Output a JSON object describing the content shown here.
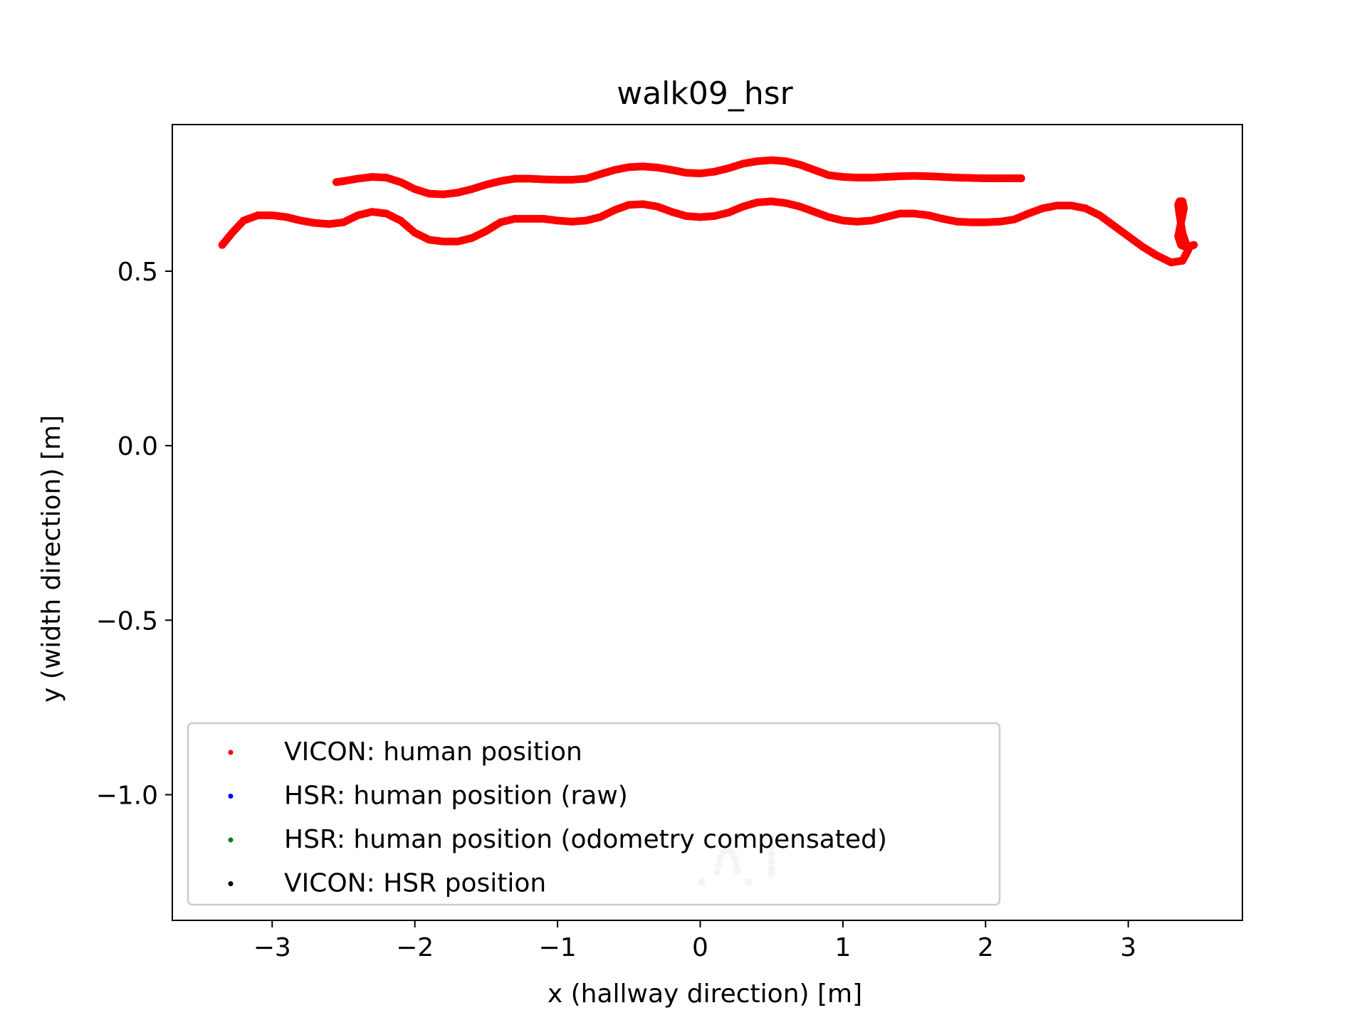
{
  "chart_data": {
    "type": "scatter",
    "title": "walk09_hsr",
    "xlabel": "x (hallway direction) [m]",
    "ylabel": "y (width direction) [m]",
    "xlim": [
      -3.7,
      3.8
    ],
    "ylim": [
      -1.36,
      0.92
    ],
    "grid": false,
    "legend_position": "lower-left",
    "x_ticks": [
      -3,
      -2,
      -1,
      0,
      1,
      2,
      3
    ],
    "x_tick_labels": [
      "−3",
      "−2",
      "−1",
      "0",
      "1",
      "2",
      "3"
    ],
    "y_ticks": [
      0.5,
      0.0,
      -0.5,
      -1.0
    ],
    "y_tick_labels": [
      "0.5",
      "0.0",
      "−0.5",
      "−1.0"
    ],
    "series": [
      {
        "name": "VICON: human position",
        "color": "#ff0000",
        "x": [
          -3.35,
          -3.28,
          -3.2,
          -3.1,
          -3.0,
          -2.9,
          -2.8,
          -2.7,
          -2.6,
          -2.5,
          -2.4,
          -2.3,
          -2.2,
          -2.1,
          -2.0,
          -1.9,
          -1.8,
          -1.7,
          -1.6,
          -1.5,
          -1.4,
          -1.3,
          -1.2,
          -1.1,
          -1.0,
          -0.9,
          -0.8,
          -0.7,
          -0.6,
          -0.5,
          -0.4,
          -0.3,
          -0.2,
          -0.1,
          0.0,
          0.1,
          0.2,
          0.3,
          0.4,
          0.5,
          0.6,
          0.7,
          0.8,
          0.9,
          1.0,
          1.1,
          1.2,
          1.3,
          1.4,
          1.5,
          1.6,
          1.7,
          1.8,
          1.9,
          2.0,
          2.1,
          2.2,
          2.3,
          2.4,
          2.5,
          2.6,
          2.7,
          2.8,
          2.9,
          3.0,
          3.1,
          3.2,
          3.3,
          3.38,
          3.42,
          3.38,
          3.36,
          3.35,
          3.36,
          3.38,
          3.39,
          3.37,
          3.35,
          3.37,
          3.4,
          3.44,
          3.46
        ],
        "y": [
          0.575,
          0.61,
          0.645,
          0.66,
          0.66,
          0.655,
          0.645,
          0.638,
          0.635,
          0.64,
          0.66,
          0.67,
          0.665,
          0.645,
          0.61,
          0.59,
          0.585,
          0.585,
          0.595,
          0.615,
          0.64,
          0.65,
          0.65,
          0.65,
          0.645,
          0.642,
          0.645,
          0.655,
          0.675,
          0.69,
          0.692,
          0.685,
          0.67,
          0.658,
          0.655,
          0.658,
          0.668,
          0.685,
          0.697,
          0.7,
          0.695,
          0.685,
          0.67,
          0.655,
          0.645,
          0.642,
          0.645,
          0.655,
          0.665,
          0.665,
          0.66,
          0.65,
          0.642,
          0.64,
          0.64,
          0.642,
          0.648,
          0.665,
          0.68,
          0.688,
          0.688,
          0.68,
          0.66,
          0.63,
          0.6,
          0.57,
          0.545,
          0.525,
          0.53,
          0.56,
          0.61,
          0.66,
          0.69,
          0.7,
          0.7,
          0.68,
          0.64,
          0.6,
          0.575,
          0.57,
          0.572,
          0.575
        ]
      },
      {
        "name": "VICON: human position",
        "color": "#ff0000",
        "x": [
          -2.55,
          -2.5,
          -2.4,
          -2.3,
          -2.2,
          -2.1,
          -2.0,
          -1.9,
          -1.8,
          -1.7,
          -1.6,
          -1.5,
          -1.4,
          -1.3,
          -1.2,
          -1.1,
          -1.0,
          -0.9,
          -0.8,
          -0.7,
          -0.6,
          -0.5,
          -0.4,
          -0.3,
          -0.2,
          -0.1,
          0.0,
          0.1,
          0.2,
          0.3,
          0.4,
          0.5,
          0.6,
          0.7,
          0.8,
          0.9,
          1.0,
          1.1,
          1.2,
          1.3,
          1.4,
          1.5,
          1.6,
          1.7,
          1.8,
          1.9,
          2.0,
          2.1,
          2.2,
          2.25
        ],
        "y": [
          0.755,
          0.758,
          0.765,
          0.77,
          0.768,
          0.755,
          0.735,
          0.722,
          0.72,
          0.725,
          0.735,
          0.748,
          0.758,
          0.765,
          0.765,
          0.763,
          0.762,
          0.762,
          0.765,
          0.778,
          0.79,
          0.798,
          0.8,
          0.797,
          0.79,
          0.782,
          0.78,
          0.785,
          0.795,
          0.808,
          0.815,
          0.818,
          0.815,
          0.805,
          0.79,
          0.775,
          0.77,
          0.768,
          0.768,
          0.77,
          0.772,
          0.773,
          0.772,
          0.77,
          0.768,
          0.767,
          0.766,
          0.766,
          0.766,
          0.766
        ]
      },
      {
        "name": "HSR: human position (raw)",
        "color": "#0000ff",
        "x": [],
        "y": []
      },
      {
        "name": "HSR: human position (odometry compensated)",
        "color": "#008000",
        "x": [],
        "y": []
      },
      {
        "name": "VICON: HSR position",
        "color": "#000000",
        "x": [],
        "y": []
      },
      {
        "color": "#c8c8c8",
        "x": [
          0.01,
          0.12,
          0.13,
          0.14,
          0.16,
          0.18,
          0.2,
          0.22,
          0.24,
          0.25,
          0.26,
          0.34,
          0.5,
          0.5,
          0.5,
          0.5,
          0.5
        ],
        "y": [
          -1.25,
          -1.22,
          -1.2,
          -1.18,
          -1.165,
          -1.16,
          -1.16,
          -1.165,
          -1.18,
          -1.2,
          -1.22,
          -1.25,
          -1.15,
          -1.17,
          -1.19,
          -1.21,
          -1.225
        ]
      }
    ],
    "legend": [
      {
        "label": "VICON: human position",
        "color": "#ff0000"
      },
      {
        "label": "HSR: human position (raw)",
        "color": "#0000ff"
      },
      {
        "label": "HSR: human position (odometry compensated)",
        "color": "#008000"
      },
      {
        "label": "VICON: HSR position",
        "color": "#000000"
      }
    ]
  }
}
